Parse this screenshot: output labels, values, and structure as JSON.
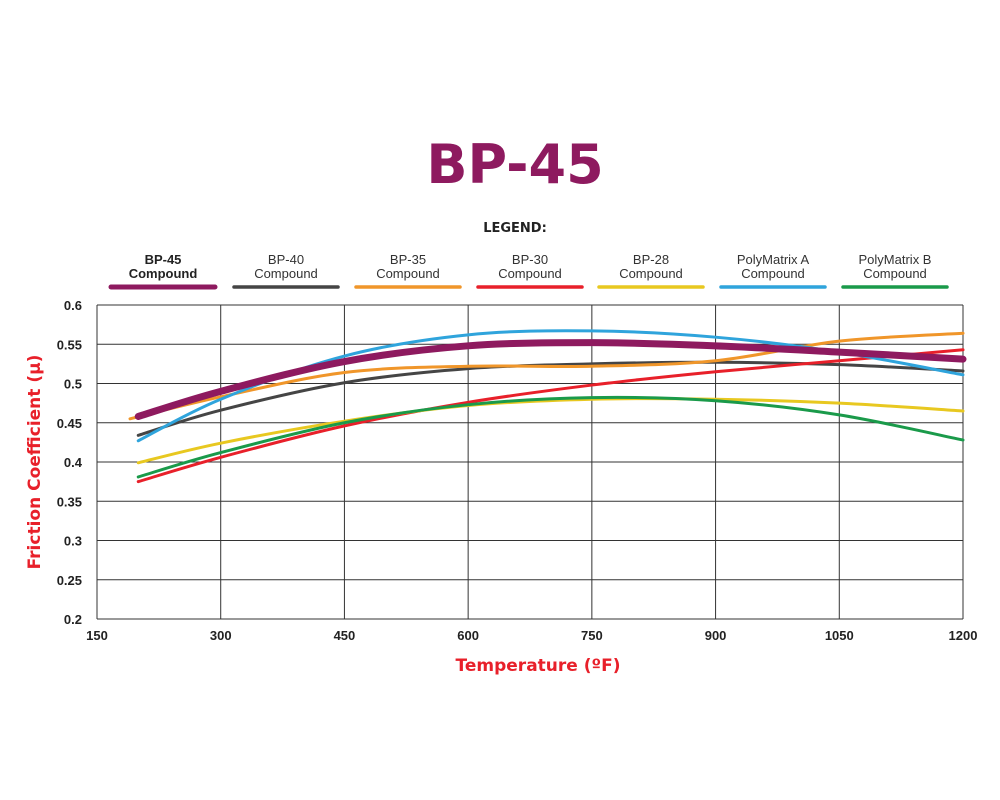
{
  "chart_data": {
    "type": "line",
    "title": "BP-45",
    "xlabel": "Temperature (ºF)",
    "ylabel": "Friction Coefficient (µ)",
    "legend_title": "LEGEND:",
    "legend_placement": "top",
    "xlim": [
      150,
      1200
    ],
    "ylim": [
      0.2,
      0.6
    ],
    "xticks": [
      "150",
      "300",
      "450",
      "600",
      "750",
      "900",
      "1050",
      "1200"
    ],
    "yticks": [
      "0.2",
      "0.25",
      "0.3",
      "0.35",
      "0.4",
      "0.45",
      "0.5",
      "0.55",
      "0.6"
    ],
    "grid": true,
    "colors": {
      "title": "#8e1a5f",
      "axis_labels": "#e8202a",
      "grid": "#333333"
    },
    "series": [
      {
        "name": "BP-45 Compound",
        "name_lines": [
          "BP-45",
          "Compound"
        ],
        "color": "#8e1a5f",
        "emphasis": true,
        "x": [
          200,
          300,
          450,
          600,
          750,
          900,
          1050,
          1200
        ],
        "y": [
          0.458,
          0.49,
          0.528,
          0.548,
          0.552,
          0.548,
          0.54,
          0.531
        ]
      },
      {
        "name": "BP-40 Compound",
        "name_lines": [
          "BP-40",
          "Compound"
        ],
        "color": "#454545",
        "x": [
          200,
          300,
          450,
          600,
          750,
          900,
          1050,
          1200
        ],
        "y": [
          0.434,
          0.466,
          0.501,
          0.519,
          0.525,
          0.527,
          0.524,
          0.516
        ]
      },
      {
        "name": "BP-35 Compound",
        "name_lines": [
          "BP-35",
          "Compound"
        ],
        "color": "#f0962a",
        "x": [
          190,
          300,
          450,
          600,
          750,
          900,
          1050,
          1200
        ],
        "y": [
          0.455,
          0.483,
          0.514,
          0.522,
          0.522,
          0.529,
          0.554,
          0.564
        ]
      },
      {
        "name": "BP-30 Compound",
        "name_lines": [
          "BP-30",
          "Compound"
        ],
        "color": "#e8202a",
        "x": [
          200,
          300,
          450,
          600,
          750,
          900,
          1050,
          1200
        ],
        "y": [
          0.375,
          0.406,
          0.446,
          0.476,
          0.498,
          0.515,
          0.529,
          0.543
        ]
      },
      {
        "name": "BP-28 Compound",
        "name_lines": [
          "BP-28",
          "Compound"
        ],
        "color": "#e8c820",
        "x": [
          200,
          300,
          450,
          600,
          750,
          900,
          1050,
          1200
        ],
        "y": [
          0.399,
          0.424,
          0.452,
          0.472,
          0.48,
          0.48,
          0.475,
          0.465
        ]
      },
      {
        "name": "PolyMatrix A Compound",
        "name_lines": [
          "PolyMatrix A",
          "Compound"
        ],
        "color": "#2fa4dc",
        "x": [
          200,
          300,
          450,
          600,
          750,
          900,
          1050,
          1200
        ],
        "y": [
          0.427,
          0.48,
          0.535,
          0.562,
          0.567,
          0.559,
          0.54,
          0.511
        ]
      },
      {
        "name": "PolyMatrix B Compound",
        "name_lines": [
          "PolyMatrix B",
          "Compound"
        ],
        "color": "#1a9a4a",
        "x": [
          200,
          300,
          450,
          600,
          750,
          900,
          1050,
          1200
        ],
        "y": [
          0.381,
          0.412,
          0.45,
          0.473,
          0.482,
          0.478,
          0.46,
          0.428
        ]
      }
    ]
  }
}
